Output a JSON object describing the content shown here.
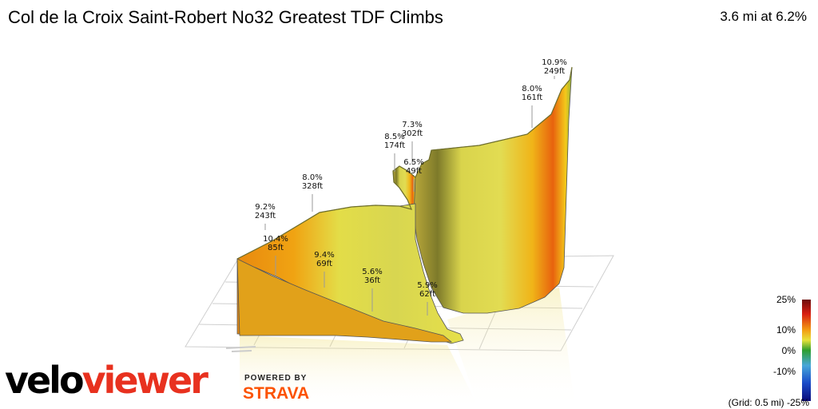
{
  "header": {
    "title": "Col de la Croix Saint-Robert No32 Greatest TDF Climbs",
    "summary": "3.6 mi at 6.2%"
  },
  "brand": {
    "logo_part1": "velo",
    "logo_part2": "viewer",
    "powered_by": "POWERED BY",
    "strava": "STRAVA"
  },
  "legend": {
    "ticks": [
      "25%",
      "10%",
      "0%",
      "-10%",
      "-25%"
    ],
    "grid_note": "(Grid: 0.5 mi)",
    "colors": [
      "#6d0d0d",
      "#d81e12",
      "#f39c12",
      "#e7e23a",
      "#2e9e2e",
      "#47a7d9",
      "#1a4cc9",
      "#0a0a7a"
    ]
  },
  "chart_data": {
    "type": "area",
    "title": "Col de la Croix Saint-Robert No32 Greatest TDF Climbs",
    "summary": "3.6 mi at 6.2%",
    "grid": true,
    "legend_placement": "bottom-right",
    "color_scale": {
      "min": -25,
      "max": 25,
      "ticks": [
        25,
        10,
        0,
        -10,
        -25
      ],
      "unit": "%"
    },
    "segments": [
      {
        "grade": "9.2%",
        "gain": "243ft"
      },
      {
        "grade": "10.4%",
        "gain": "85ft"
      },
      {
        "grade": "8.0%",
        "gain": "328ft"
      },
      {
        "grade": "9.4%",
        "gain": "69ft"
      },
      {
        "grade": "5.6%",
        "gain": "36ft"
      },
      {
        "grade": "5.9%",
        "gain": "62ft"
      },
      {
        "grade": "8.5%",
        "gain": "174ft"
      },
      {
        "grade": "7.3%",
        "gain": "302ft"
      },
      {
        "grade": "6.5%",
        "gain": "49ft"
      },
      {
        "grade": "8.0%",
        "gain": "161ft"
      },
      {
        "grade": "10.9%",
        "gain": "249ft"
      }
    ]
  }
}
